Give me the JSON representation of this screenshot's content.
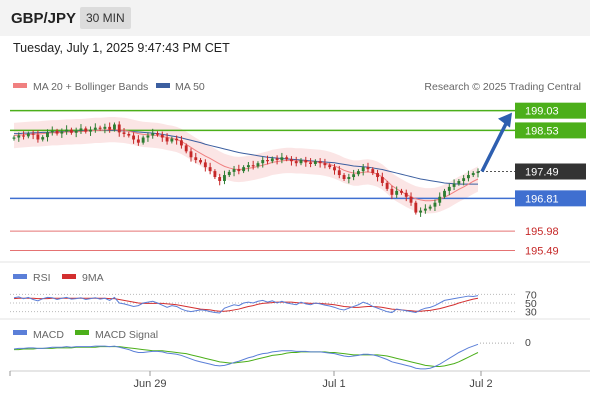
{
  "header": {
    "symbol": "GBP/JPY",
    "timeframe": "30 MIN",
    "datetime": "Tuesday, July 1, 2025 9:47:43 PM CET"
  },
  "legend": {
    "ma20": "MA 20 + Bollinger Bands",
    "ma50": "MA 50",
    "rsi": "RSI",
    "rsi_ma": "9MA",
    "macd": "MACD",
    "macd_signal": "MACD Signal",
    "credit": "Research © 2025 Trading Central"
  },
  "colors": {
    "candle_up": "#2e7d32",
    "candle_down": "#c62828",
    "ma20": "#f08080",
    "ma50": "#3c5fa0",
    "band": "#f9d3d3",
    "resistance": "#4caf1a",
    "support_blue": "#3f6fd0",
    "support_red": "#e57373",
    "rsi": "#5b7fd8",
    "rsi_ma": "#d32f2f",
    "macd": "#5b7fd8",
    "macd_signal": "#4caf1a",
    "arrow": "#2e5fb0",
    "current_price": "#333333"
  },
  "chart_data": [
    {
      "type": "candlestick",
      "x_ticks": [
        "Jun 29",
        "Jul 1",
        "Jul 2"
      ],
      "ylim": [
        195.3,
        199.3
      ],
      "current_price": 197.49,
      "levels": [
        {
          "value": 199.03,
          "kind": "resistance",
          "label": "199.03"
        },
        {
          "value": 198.53,
          "kind": "resistance",
          "label": "198.53"
        },
        {
          "value": 196.81,
          "kind": "pivot",
          "label": "196.81"
        },
        {
          "value": 195.98,
          "kind": "support",
          "label": "195.98"
        },
        {
          "value": 195.49,
          "kind": "support",
          "label": "195.49"
        }
      ],
      "current_label": "197.49",
      "closes": [
        198.35,
        198.4,
        198.38,
        198.45,
        198.42,
        198.3,
        198.36,
        198.48,
        198.52,
        198.45,
        198.5,
        198.55,
        198.47,
        198.52,
        198.58,
        198.5,
        198.55,
        198.6,
        198.57,
        198.62,
        198.55,
        198.68,
        198.48,
        198.44,
        198.4,
        198.3,
        198.22,
        198.35,
        198.4,
        198.46,
        198.42,
        198.35,
        198.25,
        198.32,
        198.28,
        198.15,
        198.0,
        197.85,
        197.78,
        197.72,
        197.6,
        197.5,
        197.35,
        197.25,
        197.4,
        197.48,
        197.55,
        197.5,
        197.6,
        197.65,
        197.62,
        197.7,
        197.78,
        197.75,
        197.82,
        197.78,
        197.85,
        197.8,
        197.75,
        197.7,
        197.78,
        197.72,
        197.68,
        197.75,
        197.7,
        197.65,
        197.6,
        197.52,
        197.4,
        197.3,
        197.35,
        197.42,
        197.5,
        197.6,
        197.55,
        197.45,
        197.35,
        197.2,
        197.05,
        196.9,
        197.0,
        196.95,
        196.85,
        196.7,
        196.45,
        196.5,
        196.55,
        196.6,
        196.7,
        196.85,
        197.0,
        197.1,
        197.18,
        197.25,
        197.32,
        197.4,
        197.45,
        197.49
      ],
      "ma20": [
        198.4,
        198.41,
        198.42,
        198.43,
        198.44,
        198.44,
        198.45,
        198.46,
        198.47,
        198.47,
        198.48,
        198.49,
        198.49,
        198.5,
        198.5,
        198.51,
        198.52,
        198.53,
        198.53,
        198.54,
        198.55,
        198.55,
        198.54,
        198.53,
        198.51,
        198.48,
        198.45,
        198.43,
        198.42,
        198.41,
        198.4,
        198.38,
        198.35,
        198.33,
        198.3,
        198.25,
        198.18,
        198.1,
        198.02,
        197.95,
        197.88,
        197.82,
        197.75,
        197.68,
        197.62,
        197.58,
        197.55,
        197.54,
        197.55,
        197.57,
        197.59,
        197.62,
        197.65,
        197.68,
        197.72,
        197.74,
        197.76,
        197.77,
        197.77,
        197.76,
        197.76,
        197.75,
        197.74,
        197.73,
        197.72,
        197.7,
        197.67,
        197.63,
        197.58,
        197.52,
        197.48,
        197.45,
        197.45,
        197.47,
        197.48,
        197.46,
        197.42,
        197.35,
        197.25,
        197.13,
        197.05,
        196.98,
        196.91,
        196.85,
        196.8,
        196.77,
        196.75,
        196.75,
        196.76,
        196.79,
        196.84,
        196.9,
        196.97,
        197.04,
        197.1,
        197.17,
        197.24,
        197.3
      ],
      "ma50": [
        198.45,
        198.45,
        198.46,
        198.46,
        198.47,
        198.47,
        198.48,
        198.48,
        198.49,
        198.49,
        198.5,
        198.5,
        198.51,
        198.51,
        198.52,
        198.52,
        198.52,
        198.53,
        198.53,
        198.53,
        198.53,
        198.53,
        198.52,
        198.52,
        198.51,
        198.5,
        198.49,
        198.48,
        198.47,
        198.46,
        198.45,
        198.43,
        198.41,
        198.39,
        198.37,
        198.34,
        198.31,
        198.28,
        198.25,
        198.22,
        198.18,
        198.15,
        198.12,
        198.09,
        198.06,
        198.03,
        198.0,
        197.97,
        197.95,
        197.93,
        197.91,
        197.89,
        197.87,
        197.85,
        197.84,
        197.83,
        197.82,
        197.81,
        197.8,
        197.79,
        197.78,
        197.77,
        197.76,
        197.75,
        197.74,
        197.73,
        197.72,
        197.71,
        197.69,
        197.67,
        197.65,
        197.63,
        197.62,
        197.61,
        197.6,
        197.58,
        197.56,
        197.54,
        197.51,
        197.48,
        197.45,
        197.42,
        197.39,
        197.36,
        197.33,
        197.3,
        197.28,
        197.26,
        197.24,
        197.22,
        197.2,
        197.19,
        197.18,
        197.17,
        197.17,
        197.17,
        197.17,
        197.17
      ],
      "band_width": 0.32
    },
    {
      "type": "line",
      "name": "RSI",
      "levels": [
        70,
        50,
        30
      ],
      "ylim": [
        20,
        80
      ],
      "rsi": [
        62,
        64,
        60,
        63,
        58,
        55,
        60,
        63,
        62,
        58,
        61,
        63,
        59,
        60,
        62,
        58,
        60,
        62,
        59,
        61,
        56,
        63,
        50,
        48,
        45,
        42,
        44,
        50,
        52,
        54,
        50,
        45,
        40,
        44,
        42,
        36,
        32,
        30,
        32,
        34,
        33,
        30,
        28,
        27,
        38,
        42,
        46,
        44,
        50,
        52,
        50,
        54,
        56,
        52,
        55,
        50,
        54,
        50,
        48,
        46,
        52,
        48,
        46,
        50,
        48,
        45,
        43,
        40,
        36,
        34,
        38,
        42,
        46,
        52,
        48,
        42,
        38,
        34,
        30,
        28,
        36,
        34,
        32,
        30,
        28,
        34,
        38,
        40,
        44,
        50,
        56,
        58,
        60,
        62,
        64,
        66,
        65,
        67
      ],
      "rsi_ma": [
        60,
        61,
        61,
        61,
        61,
        60,
        60,
        60,
        61,
        61,
        61,
        61,
        61,
        61,
        61,
        61,
        61,
        61,
        61,
        61,
        60,
        60,
        58,
        56,
        54,
        52,
        50,
        49,
        49,
        49,
        49,
        49,
        48,
        47,
        46,
        44,
        42,
        40,
        38,
        36,
        35,
        34,
        32,
        31,
        31,
        32,
        34,
        36,
        39,
        42,
        44,
        47,
        49,
        50,
        51,
        52,
        52,
        52,
        52,
        51,
        50,
        50,
        49,
        49,
        49,
        48,
        47,
        46,
        44,
        42,
        41,
        40,
        40,
        41,
        42,
        42,
        41,
        40,
        38,
        36,
        35,
        34,
        33,
        32,
        31,
        31,
        32,
        33,
        35,
        37,
        40,
        43,
        46,
        50,
        53,
        56,
        59,
        61
      ]
    },
    {
      "type": "line",
      "name": "MACD",
      "levels": [
        0
      ],
      "level_label": "0",
      "macd": [
        0.02,
        0.03,
        0.03,
        0.04,
        0.04,
        0.03,
        0.03,
        0.04,
        0.05,
        0.05,
        0.05,
        0.06,
        0.05,
        0.06,
        0.06,
        0.06,
        0.06,
        0.07,
        0.07,
        0.07,
        0.06,
        0.07,
        0.05,
        0.03,
        0.01,
        -0.02,
        -0.04,
        -0.04,
        -0.03,
        -0.02,
        -0.02,
        -0.03,
        -0.05,
        -0.06,
        -0.07,
        -0.09,
        -0.12,
        -0.15,
        -0.18,
        -0.2,
        -0.22,
        -0.24,
        -0.26,
        -0.27,
        -0.26,
        -0.24,
        -0.21,
        -0.19,
        -0.16,
        -0.13,
        -0.11,
        -0.08,
        -0.06,
        -0.05,
        -0.03,
        -0.02,
        -0.01,
        -0.01,
        -0.01,
        -0.02,
        -0.02,
        -0.02,
        -0.03,
        -0.03,
        -0.03,
        -0.04,
        -0.05,
        -0.06,
        -0.08,
        -0.1,
        -0.11,
        -0.1,
        -0.09,
        -0.07,
        -0.07,
        -0.08,
        -0.1,
        -0.13,
        -0.16,
        -0.2,
        -0.22,
        -0.24,
        -0.26,
        -0.28,
        -0.31,
        -0.32,
        -0.32,
        -0.31,
        -0.28,
        -0.24,
        -0.19,
        -0.14,
        -0.09,
        -0.04,
        0.0,
        0.04,
        0.07,
        0.1
      ],
      "signal": [
        0.01,
        0.01,
        0.02,
        0.02,
        0.02,
        0.03,
        0.03,
        0.03,
        0.03,
        0.04,
        0.04,
        0.04,
        0.04,
        0.05,
        0.05,
        0.05,
        0.05,
        0.05,
        0.06,
        0.06,
        0.06,
        0.06,
        0.06,
        0.05,
        0.04,
        0.03,
        0.02,
        0.01,
        0.0,
        -0.01,
        -0.01,
        -0.01,
        -0.02,
        -0.03,
        -0.04,
        -0.05,
        -0.06,
        -0.08,
        -0.1,
        -0.12,
        -0.14,
        -0.16,
        -0.18,
        -0.2,
        -0.21,
        -0.22,
        -0.22,
        -0.21,
        -0.2,
        -0.19,
        -0.17,
        -0.15,
        -0.13,
        -0.11,
        -0.09,
        -0.08,
        -0.07,
        -0.05,
        -0.04,
        -0.04,
        -0.03,
        -0.03,
        -0.03,
        -0.03,
        -0.03,
        -0.03,
        -0.04,
        -0.04,
        -0.05,
        -0.06,
        -0.07,
        -0.08,
        -0.08,
        -0.08,
        -0.08,
        -0.08,
        -0.08,
        -0.09,
        -0.1,
        -0.12,
        -0.14,
        -0.16,
        -0.18,
        -0.2,
        -0.22,
        -0.24,
        -0.26,
        -0.27,
        -0.28,
        -0.28,
        -0.27,
        -0.25,
        -0.23,
        -0.2,
        -0.16,
        -0.12,
        -0.08,
        -0.04
      ]
    }
  ]
}
